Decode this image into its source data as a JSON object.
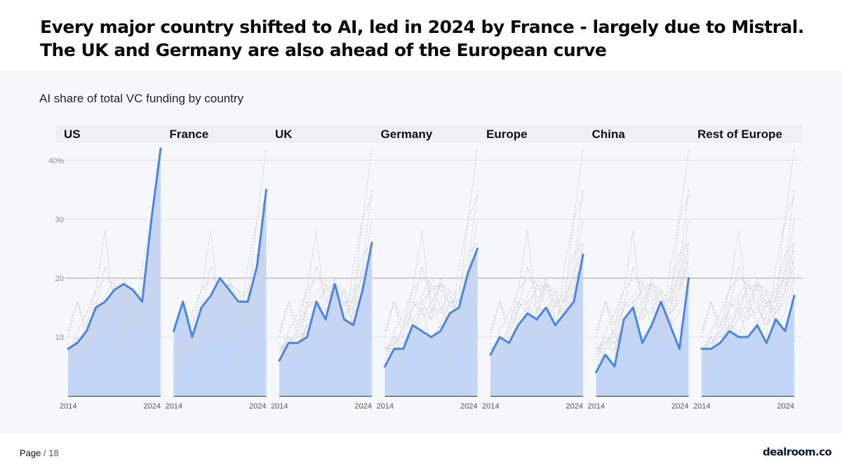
{
  "headline": "Every major country shifted to AI, led in 2024 by France - largely due to Mistral. The UK and Germany are also ahead of the European curve",
  "subtitle": "AI share of total VC funding by country",
  "footer": {
    "page_label": "Page",
    "separator": "/",
    "page_total": "18"
  },
  "logo": {
    "text": "dealroom.co"
  },
  "colors": {
    "highlight_line": "#4a86e0",
    "highlight_fill": "#c3d6f8",
    "context_line": "#d4d4d8",
    "panel_bg": "#f6f7fa"
  },
  "chart_data": {
    "type": "line",
    "small_multiples": true,
    "ylim": [
      0,
      42
    ],
    "y_ticks": [
      {
        "value": 40,
        "label": "40%"
      },
      {
        "value": 30,
        "label": "30"
      },
      {
        "value": 20,
        "label": "20"
      },
      {
        "value": 10,
        "label": "10"
      }
    ],
    "x": [
      2014,
      2015,
      2016,
      2017,
      2018,
      2019,
      2020,
      2021,
      2022,
      2023,
      2024
    ],
    "x_tick_labels": [
      "2014",
      "2024"
    ],
    "series": [
      {
        "name": "US",
        "values": [
          8,
          9,
          11,
          15,
          16,
          18,
          19,
          18,
          16,
          30,
          42
        ]
      },
      {
        "name": "France",
        "values": [
          11,
          16,
          10,
          15,
          17,
          20,
          18,
          16,
          16,
          22,
          35
        ]
      },
      {
        "name": "UK",
        "values": [
          6,
          9,
          9,
          10,
          16,
          13,
          19,
          13,
          12,
          18,
          26
        ]
      },
      {
        "name": "Germany",
        "values": [
          5,
          8,
          8,
          12,
          11,
          10,
          11,
          14,
          15,
          21,
          25
        ]
      },
      {
        "name": "Europe",
        "values": [
          7,
          10,
          9,
          12,
          14,
          13,
          15,
          12,
          14,
          16,
          24
        ]
      },
      {
        "name": "China",
        "values": [
          4,
          7,
          5,
          13,
          15,
          9,
          12,
          16,
          12,
          8,
          20
        ]
      },
      {
        "name": "Rest of Europe",
        "values": [
          8,
          8,
          9,
          11,
          10,
          10,
          12,
          9,
          13,
          11,
          17
        ]
      }
    ],
    "context_series": [
      {
        "name": "context-1",
        "values": [
          10,
          16,
          12,
          18,
          28,
          14,
          20,
          15,
          18,
          24,
          26
        ]
      },
      {
        "name": "context-2",
        "values": [
          7,
          11,
          14,
          18,
          20,
          19,
          17,
          10,
          22,
          30,
          34
        ]
      },
      {
        "name": "context-3",
        "values": [
          9,
          6,
          8,
          12,
          10,
          15,
          14,
          18,
          12,
          14,
          21
        ]
      },
      {
        "name": "context-4",
        "values": [
          4,
          8,
          12,
          16,
          14,
          19,
          15,
          12,
          17,
          20,
          30
        ]
      },
      {
        "name": "context-5",
        "values": [
          6,
          10,
          7,
          15,
          22,
          17,
          12,
          5,
          15,
          19,
          23
        ]
      },
      {
        "name": "context-6",
        "values": [
          8,
          9,
          10,
          11,
          13,
          16,
          19,
          17,
          14,
          18,
          22
        ]
      }
    ]
  }
}
